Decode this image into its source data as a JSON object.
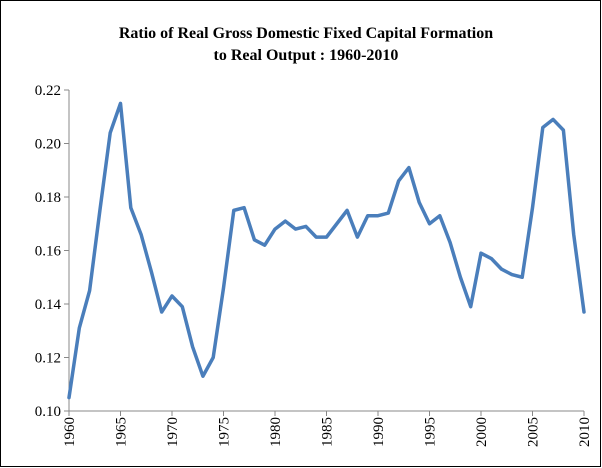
{
  "chart_data": {
    "type": "line",
    "title": [
      "Ratio of Real Gross Domestic Fixed Capital Formation",
      "to Real Output : 1960-2010"
    ],
    "x": [
      1960,
      1961,
      1962,
      1963,
      1964,
      1965,
      1966,
      1967,
      1968,
      1969,
      1970,
      1971,
      1972,
      1973,
      1974,
      1975,
      1976,
      1977,
      1978,
      1979,
      1980,
      1981,
      1982,
      1983,
      1984,
      1985,
      1986,
      1987,
      1988,
      1989,
      1990,
      1991,
      1992,
      1993,
      1994,
      1995,
      1996,
      1997,
      1998,
      1999,
      2000,
      2001,
      2002,
      2003,
      2004,
      2005,
      2006,
      2007,
      2008,
      2009,
      2010
    ],
    "series": [
      {
        "color": "#4a7ebb",
        "values": [
          0.105,
          0.131,
          0.145,
          0.175,
          0.204,
          0.215,
          0.176,
          0.166,
          0.152,
          0.137,
          0.143,
          0.139,
          0.124,
          0.113,
          0.12,
          0.146,
          0.175,
          0.176,
          0.164,
          0.162,
          0.168,
          0.171,
          0.168,
          0.169,
          0.165,
          0.165,
          0.17,
          0.175,
          0.165,
          0.173,
          0.173,
          0.174,
          0.186,
          0.191,
          0.178,
          0.17,
          0.173,
          0.163,
          0.15,
          0.139,
          0.159,
          0.157,
          0.153,
          0.151,
          0.15,
          0.176,
          0.206,
          0.209,
          0.205,
          0.166,
          0.137
        ]
      }
    ],
    "xlim": [
      1960,
      2010
    ],
    "xticks": [
      1960,
      1965,
      1970,
      1975,
      1980,
      1985,
      1990,
      1995,
      2000,
      2005,
      2010
    ],
    "ylim": [
      0.1,
      0.22
    ],
    "yticks": [
      {
        "value": 0.1,
        "label": "0.10"
      },
      {
        "value": 0.12,
        "label": "0.12"
      },
      {
        "value": 0.14,
        "label": "0.14"
      },
      {
        "value": 0.16,
        "label": "0.16"
      },
      {
        "value": 0.18,
        "label": "0.18"
      },
      {
        "value": 0.2,
        "label": "0.20"
      },
      {
        "value": 0.22,
        "label": "0.22"
      }
    ],
    "grid": false
  }
}
